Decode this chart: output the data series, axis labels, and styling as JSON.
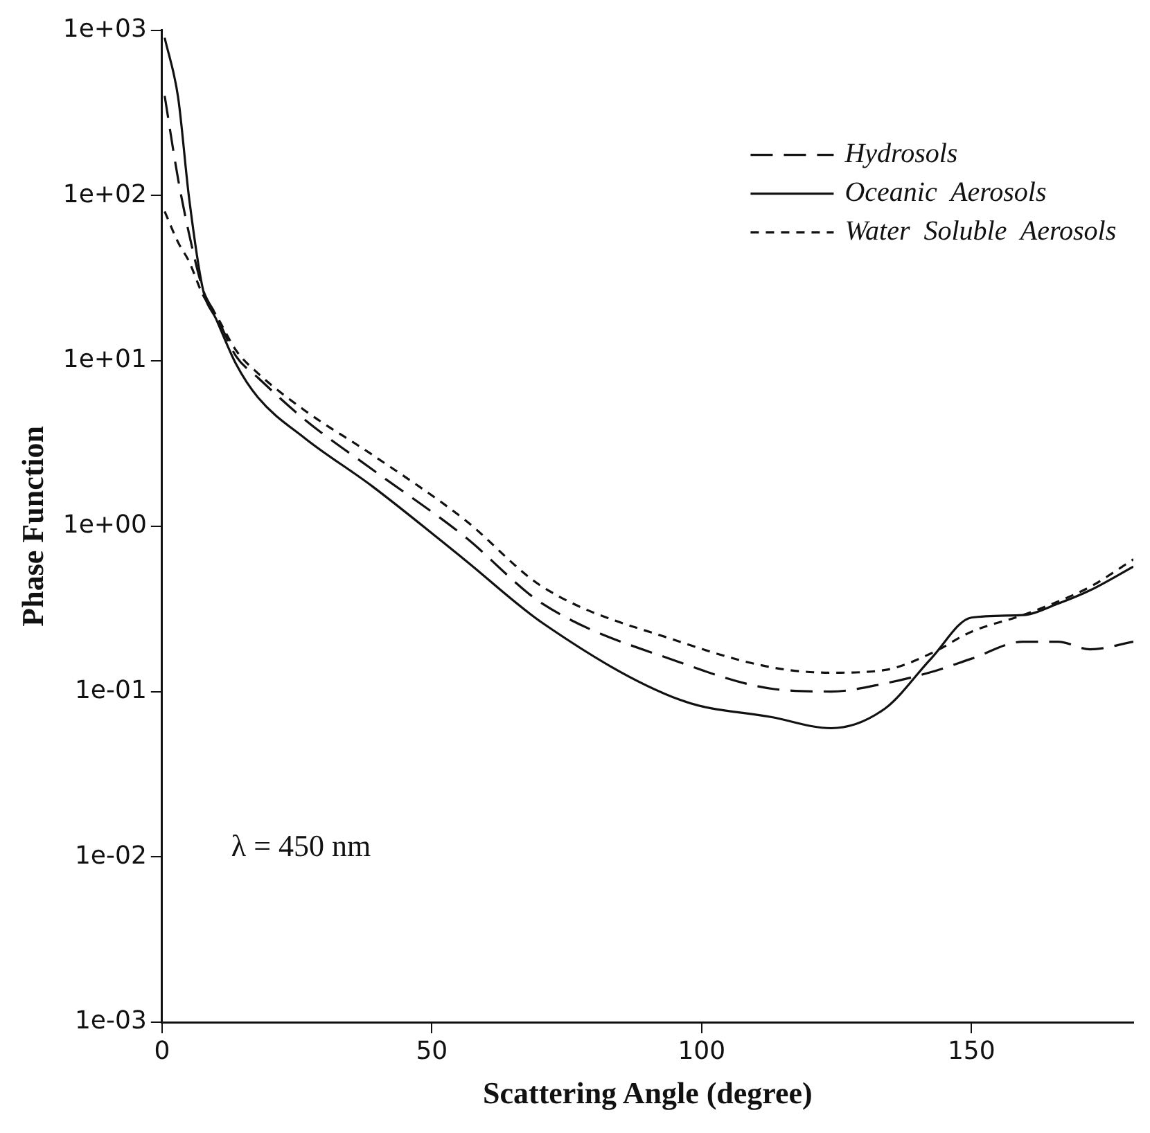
{
  "chart_data": {
    "type": "line",
    "xlabel": "Scattering Angle (degree)",
    "ylabel": "Phase Function",
    "log": "y",
    "grid": false,
    "legend": "top right",
    "marker": "none",
    "xlim": [
      0,
      180
    ],
    "xticks": [
      0,
      50,
      100,
      150
    ],
    "ylim": [
      0.001,
      1000
    ],
    "yticks": [
      {
        "value": 0.001,
        "label": "1e-03"
      },
      {
        "value": 0.01,
        "label": "1e-02"
      },
      {
        "value": 0.1,
        "label": "1e-01"
      },
      {
        "value": 1,
        "label": "1e+00"
      },
      {
        "value": 10,
        "label": "1e+01"
      },
      {
        "value": 100,
        "label": "1e+02"
      },
      {
        "value": 1000,
        "label": "1e+03"
      }
    ],
    "annotations": [
      "λ = 450 nm"
    ],
    "x": [
      0.5,
      3,
      5,
      7.6,
      10,
      13.7,
      17.8,
      26.5,
      39,
      56,
      70.5,
      96,
      113,
      124,
      134,
      142.5,
      150,
      159.5,
      166,
      172,
      180
    ],
    "series": [
      {
        "name": "Hydrosols",
        "color": "#111111",
        "line_style": "long-dashed",
        "values": [
          400,
          125,
          59,
          27,
          19,
          10.7,
          7.9,
          4.4,
          2.2,
          0.87,
          0.34,
          0.15,
          0.104,
          0.1,
          0.112,
          0.131,
          0.158,
          0.2,
          0.2,
          0.18,
          0.2
        ]
      },
      {
        "name": "Oceanic  Aerosols",
        "color": "#111111",
        "line_style": "solid",
        "values": [
          900,
          390,
          98,
          27,
          18,
          9.6,
          6,
          3.4,
          1.74,
          0.63,
          0.26,
          0.089,
          0.07,
          0.06,
          0.079,
          0.158,
          0.28,
          0.29,
          0.34,
          0.41,
          0.57
        ]
      },
      {
        "name": "Water  Soluble  Aerosols",
        "color": "#111111",
        "line_style": "dashed",
        "values": [
          80,
          52,
          40,
          25,
          19,
          11.6,
          8.4,
          5,
          2.7,
          1.1,
          0.43,
          0.2,
          0.14,
          0.13,
          0.135,
          0.17,
          0.23,
          0.29,
          0.35,
          0.43,
          0.63
        ]
      }
    ]
  }
}
